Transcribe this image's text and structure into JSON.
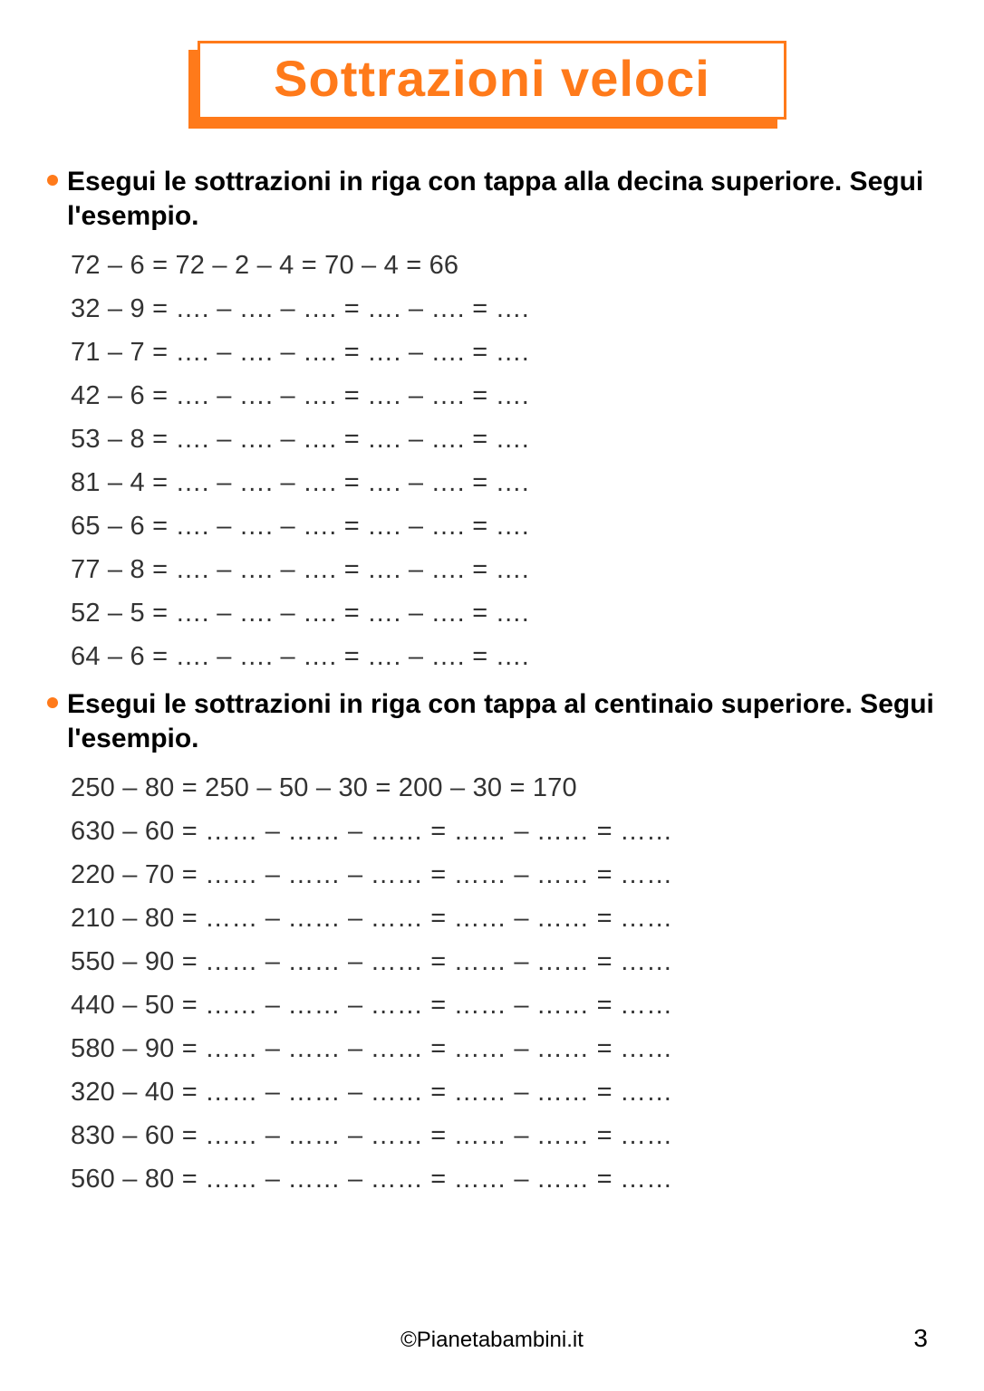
{
  "title": "Sottrazioni veloci",
  "colors": {
    "accent": "#ff7a1a",
    "text": "#000000",
    "row_text": "#333333",
    "bg": "#ffffff"
  },
  "typography": {
    "title_fontsize": 56,
    "instruction_fontsize": 30,
    "row_fontsize": 29,
    "footer_fontsize": 24
  },
  "sections": [
    {
      "instruction": "Esegui le sottrazioni in riga con tappa alla decina superiore. Segui l'esempio.",
      "blank": "….",
      "example_solved": {
        "a": "72",
        "b": "6",
        "s1": "72",
        "s2": " 2 ",
        "s3": " 4 ",
        "s4": "70",
        "s5": " 4 ",
        "ans": "66"
      },
      "rows": [
        {
          "a": "72",
          "b": "6",
          "solved": true
        },
        {
          "a": "32",
          "b": "9",
          "solved": false
        },
        {
          "a": "71",
          "b": "7",
          "solved": false
        },
        {
          "a": "42",
          "b": "6",
          "solved": false
        },
        {
          "a": "53",
          "b": "8",
          "solved": false
        },
        {
          "a": "81",
          "b": "4",
          "solved": false
        },
        {
          "a": "65",
          "b": "6",
          "solved": false
        },
        {
          "a": "77",
          "b": "8",
          "solved": false
        },
        {
          "a": "52",
          "b": "5",
          "solved": false
        },
        {
          "a": "64",
          "b": "6",
          "solved": false
        }
      ]
    },
    {
      "instruction": "Esegui le sottrazioni in riga con tappa al centinaio superiore. Segui l'esempio.",
      "blank": "……",
      "example_solved": {
        "a": "250",
        "b": "80",
        "s1": "250",
        "s2": " 50 ",
        "s3": " 30 ",
        "s4": "200",
        "s5": " 30 ",
        "ans": "170"
      },
      "rows": [
        {
          "a": "250",
          "b": "80",
          "solved": true
        },
        {
          "a": "630",
          "b": "60",
          "solved": false
        },
        {
          "a": "220",
          "b": "70",
          "solved": false
        },
        {
          "a": "210",
          "b": "80",
          "solved": false
        },
        {
          "a": "550",
          "b": "90",
          "solved": false
        },
        {
          "a": "440",
          "b": "50",
          "solved": false
        },
        {
          "a": "580",
          "b": "90",
          "solved": false
        },
        {
          "a": "320",
          "b": "40",
          "solved": false
        },
        {
          "a": "830",
          "b": "60",
          "solved": false
        },
        {
          "a": "560",
          "b": "80",
          "solved": false
        }
      ]
    }
  ],
  "footer": "©Pianetabambini.it",
  "page_number": "3"
}
